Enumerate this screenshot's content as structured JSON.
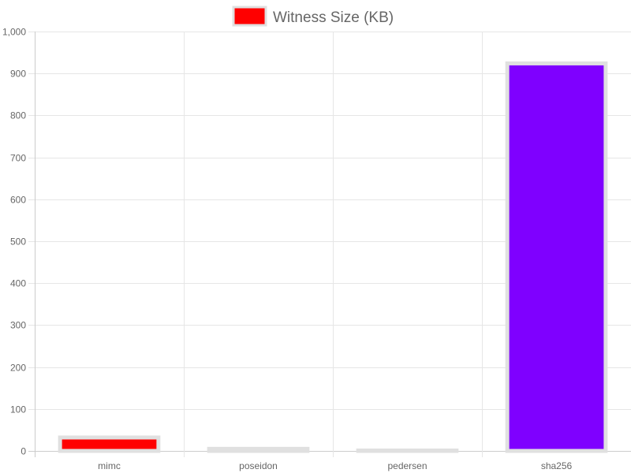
{
  "chart_data": {
    "type": "bar",
    "categories": [
      "mimc",
      "poseidon",
      "pedersen",
      "sha256"
    ],
    "series": [
      {
        "name": "Witness Size (KB)",
        "values": [
          32,
          5,
          1,
          924
        ]
      }
    ],
    "bar_colors": [
      "#ff0000",
      "#99e05a",
      "#6fcf7f",
      "#7f00ff"
    ],
    "bar_border_color": "#e0e0e0",
    "legend_color": "#ff0000",
    "ylim": [
      0,
      1000
    ],
    "y_ticks": [
      0,
      100,
      200,
      300,
      400,
      500,
      600,
      700,
      800,
      900,
      1000
    ],
    "y_tick_labels": [
      "0",
      "100",
      "200",
      "300",
      "400",
      "500",
      "600",
      "700",
      "800",
      "900",
      "1,000"
    ],
    "grid": true,
    "legend_position": "top"
  }
}
